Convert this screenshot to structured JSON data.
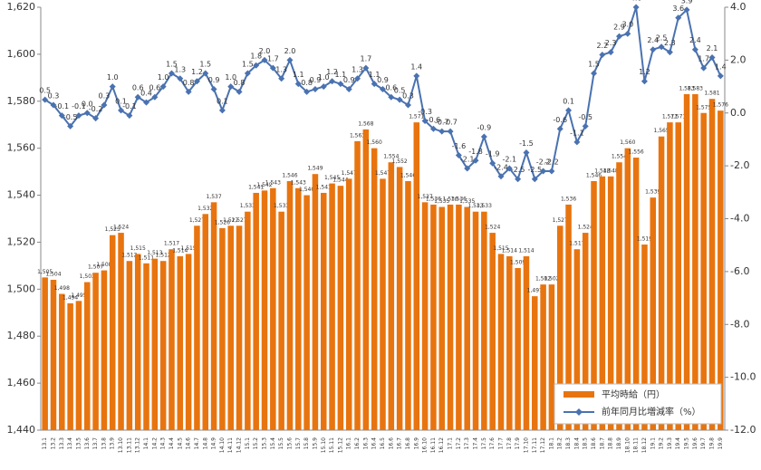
{
  "chart_data": {
    "type": "bar-line",
    "categories": [
      "13.1",
      "13.2",
      "13.3",
      "13.4",
      "13.5",
      "13.6",
      "13.7",
      "13.8",
      "13.9",
      "13.10",
      "13.11",
      "13.12",
      "14.1",
      "14.2",
      "14.3",
      "14.4",
      "14.5",
      "14.6",
      "14.7",
      "14.8",
      "14.9",
      "14.10",
      "14.11",
      "14.12",
      "15.1",
      "15.2",
      "15.3",
      "15.4",
      "15.5",
      "15.6",
      "15.7",
      "15.8",
      "15.9",
      "15.10",
      "15.11",
      "15.12",
      "16.1",
      "16.2",
      "16.3",
      "16.4",
      "16.5",
      "16.6",
      "16.7",
      "16.8",
      "16.9",
      "16.10",
      "16.11",
      "16.12",
      "17.1",
      "17.2",
      "17.3",
      "17.4",
      "17.5",
      "17.6",
      "17.7",
      "17.8",
      "17.9",
      "17.10",
      "17.11",
      "17.12",
      "18.1",
      "18.2",
      "18.3",
      "18.4",
      "18.5",
      "18.6",
      "18.7",
      "18.8",
      "18.9",
      "18.10",
      "18.11",
      "18.12",
      "19.1",
      "19.2",
      "19.3",
      "19.4",
      "19.5",
      "19.6",
      "19.7",
      "19.8",
      "19.9"
    ],
    "series": [
      {
        "name": "平均時給（円）",
        "type": "bar",
        "color": "#e8740f",
        "values": [
          1505,
          1504,
          1498,
          1494,
          1495,
          1503,
          1507,
          1508,
          1523,
          1524,
          1512,
          1515,
          1511,
          1513,
          1512,
          1517,
          1514,
          1515,
          1527,
          1532,
          1537,
          1526,
          1527,
          1527,
          1533,
          1541,
          1542,
          1543,
          1533,
          1546,
          1543,
          1540,
          1549,
          1541,
          1545,
          1544,
          1547,
          1563,
          1568,
          1560,
          1547,
          1554,
          1552,
          1546,
          1571,
          1537,
          1536,
          1535,
          1536,
          1536,
          1535,
          1533,
          1533,
          1524,
          1515,
          1514,
          1509,
          1514,
          1497,
          1502,
          1502,
          1527,
          1536,
          1517,
          1524,
          1546,
          1548,
          1548,
          1554,
          1560,
          1556,
          1519,
          1539,
          1565,
          1571,
          1571,
          1583,
          1583,
          1575,
          1581,
          1576
        ],
        "value_labels": [
          "1,505",
          "1,504",
          "1,498",
          "1,494",
          "1,495",
          "1,503",
          "1,507",
          "1,508",
          "1,523",
          "1,524",
          "1,512",
          "1,515",
          "1,511",
          "1,513",
          "1,512",
          "1,517",
          "1,514",
          "1,515",
          "1,527",
          "1,532",
          "1,537",
          "1,526",
          "1,527",
          "1,527",
          "1,533",
          "1,541",
          "1,542",
          "1,543",
          "1,533",
          "1,546",
          "1,543",
          "1,540",
          "1,549",
          "1,541",
          "1,545",
          "1,544",
          "1,547",
          "1,563",
          "1,568",
          "1,560",
          "1,547",
          "1,554",
          "1,552",
          "1,546",
          "1,571",
          "1,537",
          "1,536",
          "1,535",
          "1,536",
          "1,536",
          "1,535",
          "1,533",
          "1,533",
          "1,524",
          "1,515",
          "1,514",
          "1,509",
          "1,514",
          "1,497",
          "1,502",
          "1,502",
          "1,527",
          "1,536",
          "1,517",
          "1,524",
          "1,546",
          "1,548",
          "1,548",
          "1,554",
          "1,560",
          "1,556",
          "1,519",
          "1,539",
          "1,565",
          "1,571",
          "1,571",
          "1,583",
          "1,583",
          "1,575",
          "1,581",
          "1,576"
        ]
      },
      {
        "name": "前年同月比増減率（%）",
        "type": "line",
        "axis": "y2",
        "color": "#4a72b0",
        "values": [
          0.5,
          0.3,
          -0.1,
          -0.5,
          -0.1,
          0.0,
          -0.2,
          0.3,
          1.0,
          0.1,
          -0.1,
          0.6,
          0.4,
          0.6,
          1.0,
          1.5,
          1.3,
          0.8,
          1.2,
          1.5,
          0.9,
          0.1,
          1.0,
          0.8,
          1.5,
          1.8,
          2.0,
          1.7,
          1.3,
          2.0,
          1.1,
          0.8,
          0.9,
          1.0,
          1.2,
          1.1,
          0.9,
          1.3,
          1.7,
          1.1,
          0.9,
          0.6,
          0.5,
          0.3,
          1.4,
          -0.3,
          -0.6,
          -0.7,
          -0.7,
          -1.6,
          -2.1,
          -1.8,
          -0.9,
          -1.9,
          -2.4,
          -2.1,
          -2.5,
          -1.5,
          -2.5,
          -2.2,
          -2.2,
          -0.6,
          0.1,
          -1.1,
          -0.5,
          1.5,
          2.2,
          2.3,
          2.9,
          3.0,
          4.0,
          1.2,
          2.4,
          2.5,
          2.3,
          3.6,
          3.9,
          2.4,
          1.7,
          2.1,
          1.4
        ],
        "value_labels": [
          "0.5",
          "0.3",
          "-0.1",
          "-0.5",
          "-0.1",
          "0.0",
          "-0.2",
          "0.3",
          "1.0",
          "0.1",
          "-0.1",
          "0.6",
          "0.4",
          "0.6",
          "1.0",
          "1.5",
          "1.3",
          "0.8",
          "1.2",
          "1.5",
          "0.9",
          "0.1",
          "1.0",
          "0.8",
          "1.5",
          "1.8",
          "2.0",
          "1.7",
          "1.3",
          "2.0",
          "1.1",
          "0.8",
          "0.9",
          "1.0",
          "1.2",
          "1.1",
          "0.9",
          "1.3",
          "1.7",
          "1.1",
          "0.9",
          "0.6",
          "0.5",
          "0.3",
          "1.4",
          "-0.3",
          "-0.6",
          "-0.7",
          "-0.7",
          "-1.6",
          "-2.1",
          "-1.8",
          "-0.9",
          "-1.9",
          "-2.4",
          "-2.1",
          "-2.5",
          "-1.5",
          "-2.5",
          "-2.2",
          "-2.2",
          "-0.6",
          "0.1",
          "-1.1",
          "-0.5",
          "1.5",
          "2.2",
          "2.3",
          "2.9",
          "3.0",
          "4.0",
          "1.2",
          "2.4",
          "2.5",
          "2.3",
          "3.6",
          "3.9",
          "2.4",
          "1.7",
          "2.1",
          "1.4"
        ]
      }
    ],
    "ylim": [
      1440,
      1620
    ],
    "yticks": [
      {
        "value": 1440,
        "label": "1,440"
      },
      {
        "value": 1460,
        "label": "1,460"
      },
      {
        "value": 1480,
        "label": "1,480"
      },
      {
        "value": 1500,
        "label": "1,500"
      },
      {
        "value": 1520,
        "label": "1,520"
      },
      {
        "value": 1540,
        "label": "1,540"
      },
      {
        "value": 1560,
        "label": "1,560"
      },
      {
        "value": 1580,
        "label": "1,580"
      },
      {
        "value": 1600,
        "label": "1,600"
      },
      {
        "value": 1620,
        "label": "1,620"
      }
    ],
    "y2lim": [
      -12,
      4
    ],
    "y2ticks": [
      {
        "value": -12,
        "label": "-12.0"
      },
      {
        "value": -10,
        "label": "-10.0"
      },
      {
        "value": -8,
        "label": "-8.0"
      },
      {
        "value": -6,
        "label": "-6.0"
      },
      {
        "value": -4,
        "label": "-4.0"
      },
      {
        "value": -2,
        "label": "-2.0"
      },
      {
        "value": 0,
        "label": "0.0"
      },
      {
        "value": 2,
        "label": "2.0"
      },
      {
        "value": 4,
        "label": "4.0"
      }
    ],
    "legend": "bottom-right"
  }
}
